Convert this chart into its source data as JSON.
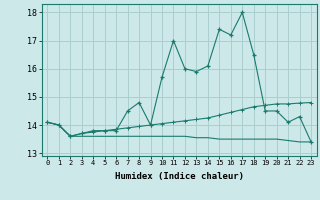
{
  "xlabel": "Humidex (Indice chaleur)",
  "x": [
    0,
    1,
    2,
    3,
    4,
    5,
    6,
    7,
    8,
    9,
    10,
    11,
    12,
    13,
    14,
    15,
    16,
    17,
    18,
    19,
    20,
    21,
    22,
    23
  ],
  "line1": [
    14.1,
    14.0,
    13.6,
    13.7,
    13.8,
    13.8,
    13.8,
    14.5,
    14.8,
    14.0,
    15.7,
    17.0,
    16.0,
    15.9,
    16.1,
    17.4,
    17.2,
    18.0,
    16.5,
    14.5,
    14.5,
    14.1,
    14.3,
    13.4
  ],
  "line2": [
    14.1,
    14.0,
    13.6,
    13.7,
    13.75,
    13.8,
    13.85,
    13.9,
    13.95,
    14.0,
    14.05,
    14.1,
    14.15,
    14.2,
    14.25,
    14.35,
    14.45,
    14.55,
    14.65,
    14.7,
    14.75,
    14.75,
    14.78,
    14.8
  ],
  "line3": [
    14.1,
    14.0,
    13.6,
    13.6,
    13.6,
    13.6,
    13.6,
    13.6,
    13.6,
    13.6,
    13.6,
    13.6,
    13.6,
    13.55,
    13.55,
    13.5,
    13.5,
    13.5,
    13.5,
    13.5,
    13.5,
    13.45,
    13.4,
    13.4
  ],
  "line_color": "#1a7a6e",
  "bg_color": "#cce8e8",
  "grid_color": "#aacece",
  "ylim": [
    12.9,
    18.3
  ],
  "yticks": [
    13,
    14,
    15,
    16,
    17,
    18
  ],
  "xticks": [
    0,
    1,
    2,
    3,
    4,
    5,
    6,
    7,
    8,
    9,
    10,
    11,
    12,
    13,
    14,
    15,
    16,
    17,
    18,
    19,
    20,
    21,
    22,
    23
  ]
}
